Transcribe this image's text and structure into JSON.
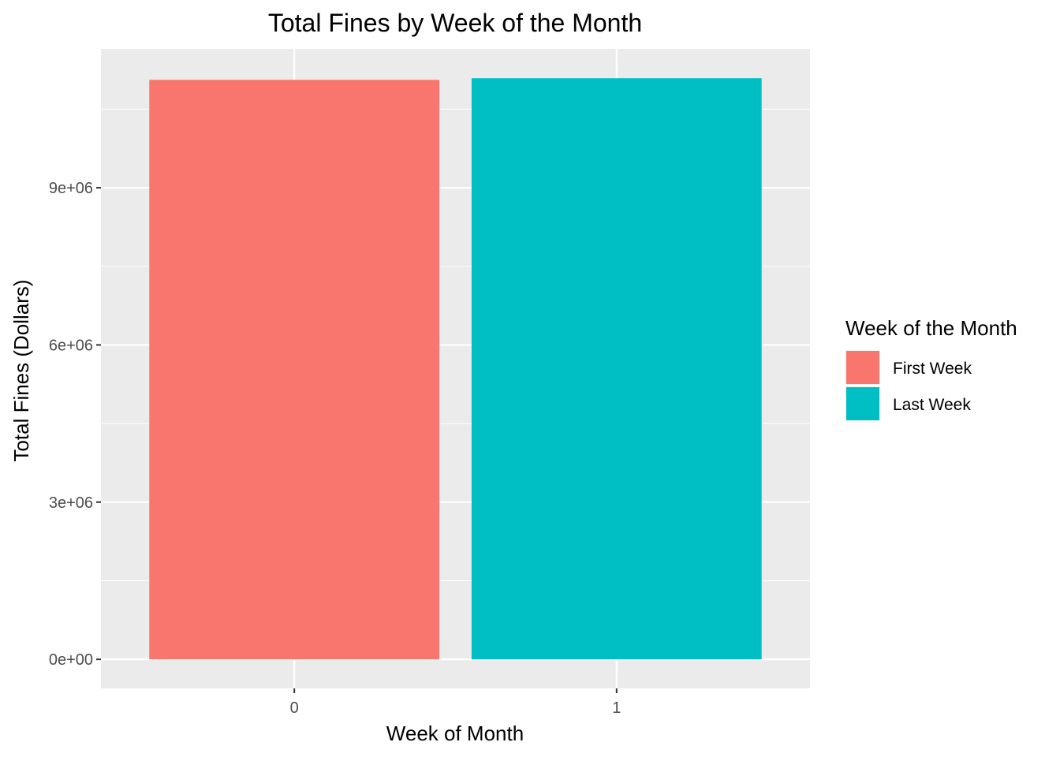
{
  "chart_data": {
    "type": "bar",
    "title": "Total Fines by Week of the Month",
    "xlabel": "Week of Month",
    "ylabel": "Total Fines (Dollars)",
    "categories": [
      "0",
      "1"
    ],
    "values": [
      11060000,
      11090000
    ],
    "colors": [
      "#F8766D",
      "#00BFC4"
    ],
    "ylim": [
      -555000,
      11650000
    ],
    "yticks": [
      0,
      3000000,
      6000000,
      9000000
    ],
    "ytick_labels": [
      "0e+00",
      "3e+06",
      "6e+06",
      "9e+06"
    ],
    "grid": true,
    "panel_background": "#EBEBEB",
    "legend": {
      "title": "Week of the Month",
      "placement": "right",
      "entries": [
        {
          "label": "First Week",
          "color": "#F8766D"
        },
        {
          "label": "Last Week",
          "color": "#00BFC4"
        }
      ]
    }
  }
}
